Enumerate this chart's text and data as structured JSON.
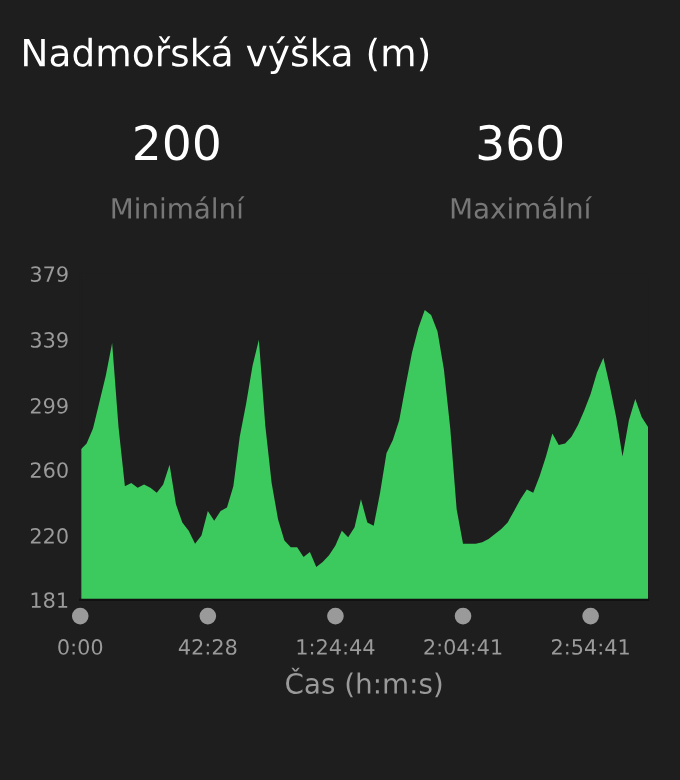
{
  "chart_data": {
    "type": "area",
    "title": "Nadmořská výška (m)",
    "xlabel": "Čas (h:m:s)",
    "annotations": [
      "200",
      "Minimální",
      "360",
      "Maximální"
    ],
    "categories": [
      "0:00",
      null,
      null,
      null,
      null,
      null,
      null,
      null,
      null,
      null,
      null,
      null,
      null,
      null,
      null,
      null,
      null,
      null,
      null,
      null,
      "42:28",
      null,
      null,
      null,
      null,
      null,
      null,
      null,
      null,
      null,
      null,
      null,
      null,
      null,
      null,
      null,
      null,
      null,
      null,
      null,
      "1:24:44",
      null,
      null,
      null,
      null,
      null,
      null,
      null,
      null,
      null,
      null,
      null,
      null,
      null,
      null,
      null,
      null,
      null,
      null,
      null,
      "2:04:41",
      null,
      null,
      null,
      null,
      null,
      null,
      null,
      null,
      null,
      null,
      null,
      null,
      null,
      null,
      null,
      null,
      null,
      null,
      null,
      "2:54:41",
      null,
      null,
      null,
      null,
      null,
      null,
      null,
      null,
      null
    ],
    "series": [
      {
        "color": "#3cc95e",
        "values": [
          272,
          276,
          285,
          301,
          317,
          337,
          286,
          250,
          252,
          249,
          251,
          249,
          246,
          251,
          263,
          239,
          228,
          223,
          215,
          220,
          235,
          229,
          235,
          237,
          250,
          280,
          300,
          323,
          339,
          287,
          252,
          230,
          217,
          213,
          213,
          207,
          210,
          201,
          204,
          208,
          214,
          223,
          219,
          225,
          242,
          228,
          226,
          246,
          270,
          278,
          290,
          311,
          331,
          346,
          357,
          354,
          344,
          321,
          285,
          236,
          215,
          215,
          215,
          216,
          218,
          221,
          224,
          228,
          235,
          242,
          248,
          246,
          256,
          268,
          282,
          275,
          276,
          280,
          287,
          296,
          306,
          319,
          328,
          311,
          292,
          268,
          290,
          303,
          292,
          286
        ]
      }
    ],
    "ylim": [
      181,
      379
    ],
    "yticks": [
      181,
      220,
      260,
      299,
      339,
      379
    ],
    "grid": false,
    "legend": false
  }
}
